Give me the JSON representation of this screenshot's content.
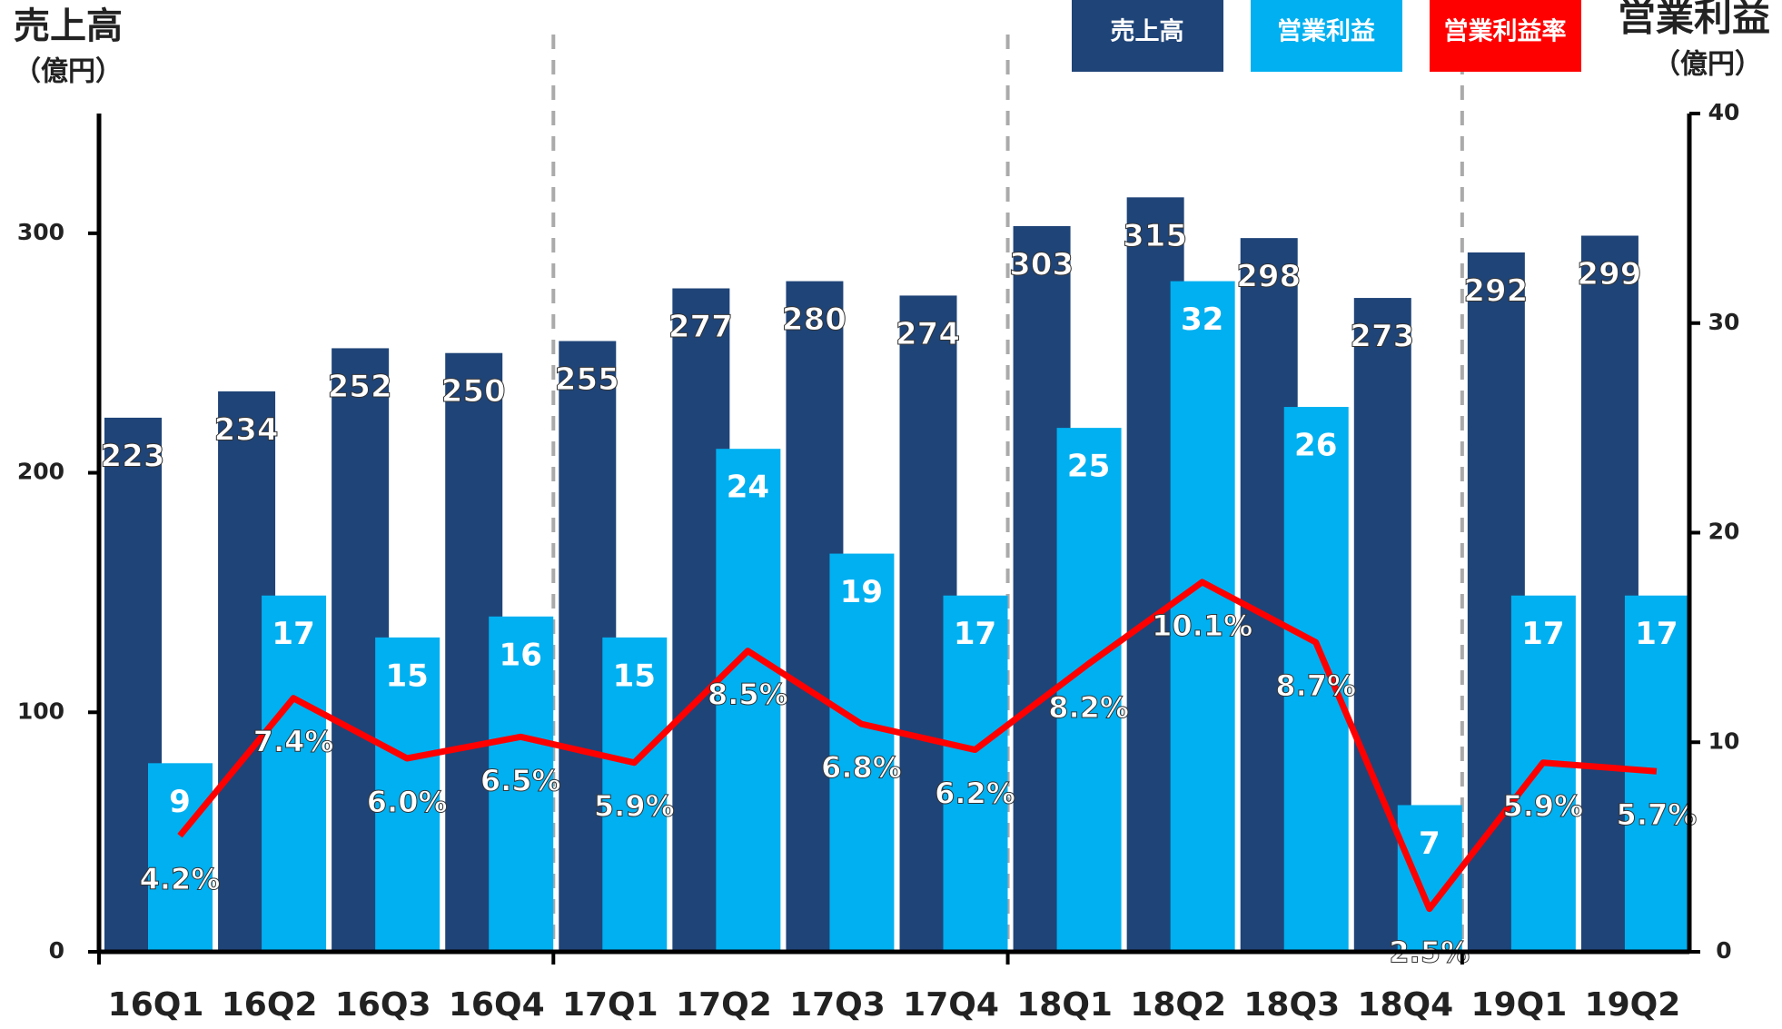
{
  "chart_data": {
    "type": "bar",
    "y_title": "売上高",
    "y_unit": "（億円）",
    "y2_title": "営業利益",
    "y2_unit": "（億円）",
    "categories": [
      "16Q1",
      "16Q2",
      "16Q3",
      "16Q4",
      "17Q1",
      "17Q2",
      "17Q3",
      "17Q4",
      "18Q1",
      "18Q2",
      "18Q3",
      "18Q4",
      "19Q1",
      "19Q2"
    ],
    "series": [
      {
        "name": "売上高",
        "color": "#1f4478",
        "values": [
          223,
          234,
          252,
          250,
          255,
          277,
          280,
          274,
          303,
          315,
          298,
          273,
          292,
          299
        ]
      },
      {
        "name": "営業利益",
        "color": "#00b0f0",
        "axis": "y2",
        "values": [
          9,
          17,
          15,
          16,
          15,
          24,
          19,
          17,
          25,
          32,
          26,
          7,
          17,
          17
        ]
      },
      {
        "name": "営業利益率",
        "color": "#ff0000",
        "type": "line",
        "axis": "y3",
        "values": [
          4.2,
          7.4,
          6.0,
          6.5,
          5.9,
          8.5,
          6.8,
          6.2,
          8.2,
          10.1,
          8.7,
          2.5,
          5.9,
          5.7
        ],
        "value_labels": [
          "4.2%",
          "7.4%",
          "6.0%",
          "6.5%",
          "5.9%",
          "8.5%",
          "6.8%",
          "6.2%",
          "8.2%",
          "10.1%",
          "8.7%",
          "2.5%",
          "5.9%",
          "5.7%"
        ]
      }
    ],
    "ylim": [
      0,
      350
    ],
    "yticks": [
      0,
      100,
      200,
      300
    ],
    "y2lim": [
      0,
      40
    ],
    "y2ticks": [
      0,
      10,
      20,
      30,
      40
    ],
    "y3lim": [
      1.5,
      21
    ]
  }
}
